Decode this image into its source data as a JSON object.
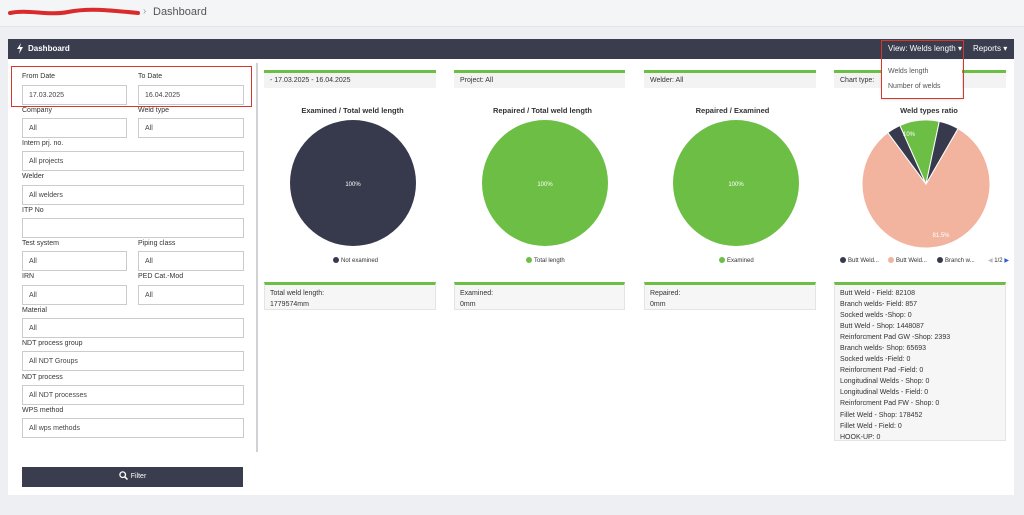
{
  "breadcrumb": {
    "current": "Dashboard"
  },
  "header": {
    "title": "Dashboard",
    "view_label": "View: Welds length",
    "reports_label": "Reports"
  },
  "view_dropdown": {
    "options": [
      "Welds length",
      "Number of welds"
    ]
  },
  "filters": {
    "from_date_label": "From Date",
    "from_date_value": "17.03.2025",
    "to_date_label": "To Date",
    "to_date_value": "16.04.2025",
    "company_label": "Company",
    "company_value": "All",
    "weld_type_label": "Weld type",
    "weld_type_value": "All",
    "intern_label": "Intern prj. no.",
    "intern_value": "All projects",
    "welder_label": "Welder",
    "welder_value": "All welders",
    "itp_label": "ITP No",
    "itp_value": "",
    "test_system_label": "Test system",
    "test_system_value": "All",
    "piping_class_label": "Piping class",
    "piping_class_value": "All",
    "irn_label": "IRN",
    "irn_value": "All",
    "ped_label": "PED Cat.-Mod",
    "ped_value": "All",
    "material_label": "Material",
    "material_value": "All",
    "ndt_group_label": "NDT process group",
    "ndt_group_value": "All NDT Groups",
    "ndt_process_label": "NDT process",
    "ndt_process_value": "All NDT processes",
    "wps_label": "WPS method",
    "wps_value": "All wps methods",
    "filter_button": "Filter"
  },
  "cards": {
    "period": "- 17.03.2025 - 16.04.2025",
    "project": "Project: All",
    "welder": "Welder: All",
    "chart_type": "Chart type:"
  },
  "charts": {
    "c1": {
      "title": "Examined / Total weld length",
      "pct": "100%",
      "legend": "Not examined",
      "color": "#373a4d"
    },
    "c2": {
      "title": "Repaired / Total weld length",
      "pct": "100%",
      "legend": "Total length",
      "color": "#6cbf44"
    },
    "c3": {
      "title": "Repaired / Examined",
      "pct": "100%",
      "legend": "Examined",
      "color": "#6cbf44"
    },
    "c4": {
      "title": "Weld types ratio",
      "label_small": "10%",
      "label_big": "81.5%",
      "legend": [
        "Butt Weld...",
        "Butt Weld...",
        "Branch w..."
      ],
      "legend_colors": [
        "#373a4d",
        "#f2b49e",
        "#373a4d"
      ],
      "page": "1/2",
      "slice_colors": [
        "#f2b49e",
        "#373a4d",
        "#6cbf44",
        "#373a4d"
      ]
    }
  },
  "chart_data": [
    {
      "type": "pie",
      "title": "Examined / Total weld length",
      "categories": [
        "Not examined"
      ],
      "values": [
        100
      ]
    },
    {
      "type": "pie",
      "title": "Repaired / Total weld length",
      "categories": [
        "Total length"
      ],
      "values": [
        100
      ]
    },
    {
      "type": "pie",
      "title": "Repaired / Examined",
      "categories": [
        "Examined"
      ],
      "values": [
        100
      ]
    },
    {
      "type": "pie",
      "title": "Weld types ratio",
      "values": [
        81.5,
        3.5,
        10,
        5
      ]
    }
  ],
  "stats": {
    "total_label": "Total weld length:",
    "total_value": "1779574mm",
    "examined_label": "Examined:",
    "examined_value": "0mm",
    "repaired_label": "Repaired:",
    "repaired_value": "0mm"
  },
  "weld_types": [
    "Butt Weld - Field: 82108",
    "Branch welds- Field: 857",
    "Socked welds -Shop: 0",
    "Butt Weld - Shop: 1448087",
    "Reinforcment Pad GW -Shop: 2393",
    "Branch welds- Shop: 65693",
    "Socked welds -Field: 0",
    "Reinforcment Pad -Field: 0",
    "Longitudinal Welds - Shop: 0",
    "Longitudinal Welds - Field: 0",
    "Reinforcment Pad FW - Shop: 0",
    "Fillet Weld - Shop: 178452",
    "Fillet Weld - Field: 0",
    "HOOK-UP: 0"
  ]
}
